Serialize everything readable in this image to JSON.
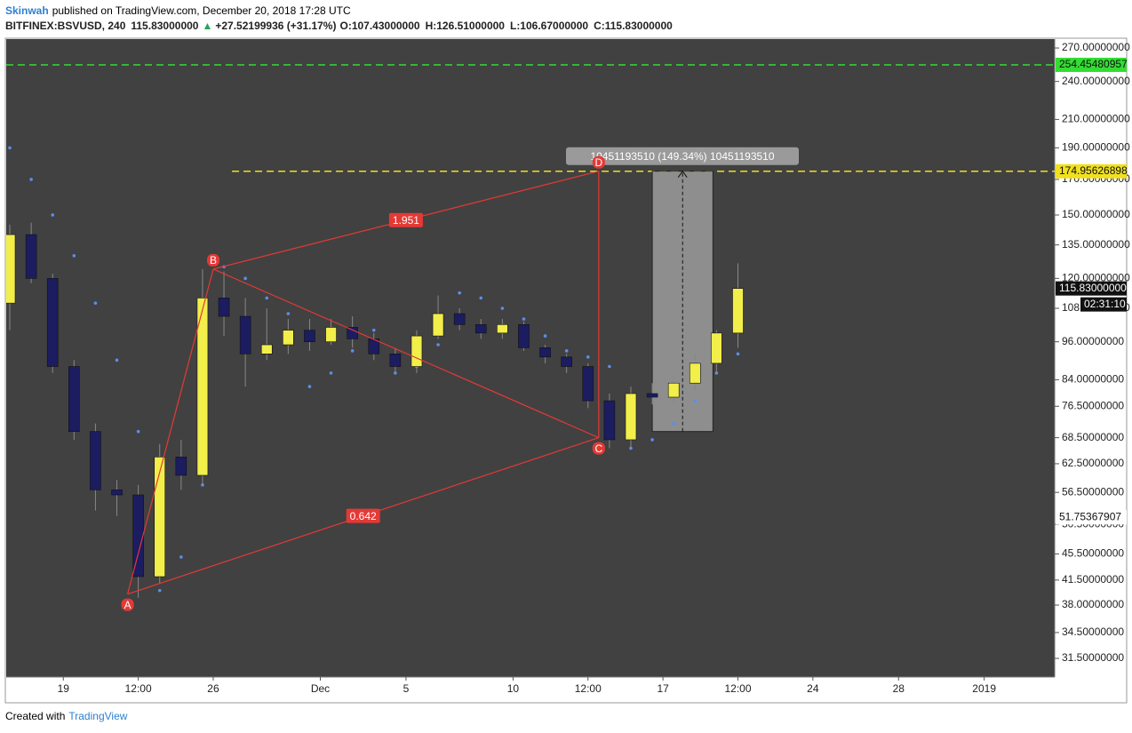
{
  "header": {
    "author": "Skinwah",
    "published": "published on TradingView.com, December 20, 2018 17:28 UTC",
    "symbol": "BITFINEX:BSVUSD, 240",
    "last": "115.83000000",
    "change": "+27.52199936 (+31.17%)",
    "open": "O:107.43000000",
    "high": "H:126.51000000",
    "low": "L:106.67000000",
    "close": "C:115.83000000"
  },
  "footer": {
    "created": "Created with",
    "brand": "TradingView"
  },
  "chart_data": {
    "type": "candlestick",
    "log_scale": true,
    "up_color": "#f2ee4a",
    "down_color": "#1c1c60",
    "sar_color": "#5b8def",
    "xlim": [
      "2018-11-16 08:00",
      "2019-01-04 07:00"
    ],
    "ylim": [
      29.5,
      278.6
    ],
    "xticks": [
      {
        "value": "2018-11-19 00:00",
        "label": "19"
      },
      {
        "value": "2018-11-22 12:00",
        "label": "12:00"
      },
      {
        "value": "2018-11-26 00:00",
        "label": "26"
      },
      {
        "value": "2018-12-01 00:00",
        "label": "Dec"
      },
      {
        "value": "2018-12-05 00:00",
        "label": "5"
      },
      {
        "value": "2018-12-10 00:00",
        "label": "10"
      },
      {
        "value": "2018-12-13 12:00",
        "label": "12:00"
      },
      {
        "value": "2018-12-17 00:00",
        "label": "17"
      },
      {
        "value": "2018-12-20 12:00",
        "label": "12:00"
      },
      {
        "value": "2018-12-24 00:00",
        "label": "24"
      },
      {
        "value": "2018-12-28 00:00",
        "label": "28"
      },
      {
        "value": "2019-01-01 00:00",
        "label": "2019"
      }
    ],
    "yticks": [
      {
        "value": 270,
        "label": "270.00000000"
      },
      {
        "value": 240,
        "label": "240.00000000"
      },
      {
        "value": 210,
        "label": "210.00000000"
      },
      {
        "value": 190,
        "label": "190.00000000"
      },
      {
        "value": 170,
        "label": "170.00000000"
      },
      {
        "value": 150,
        "label": "150.00000000"
      },
      {
        "value": 135,
        "label": "135.00000000"
      },
      {
        "value": 120,
        "label": "120.00000000"
      },
      {
        "value": 108,
        "label": "108.00000000"
      },
      {
        "value": 96,
        "label": "96.00000000"
      },
      {
        "value": 84,
        "label": "84.00000000"
      },
      {
        "value": 76.5,
        "label": "76.50000000"
      },
      {
        "value": 68.5,
        "label": "68.50000000"
      },
      {
        "value": 62.5,
        "label": "62.50000000"
      },
      {
        "value": 56.5,
        "label": "56.50000000"
      },
      {
        "value": 50.5,
        "label": "50.50000000"
      },
      {
        "value": 45.5,
        "label": "45.50000000"
      },
      {
        "value": 41.5,
        "label": "41.50000000"
      },
      {
        "value": 38,
        "label": "38.00000000"
      },
      {
        "value": 34.5,
        "label": "34.50000000"
      },
      {
        "value": 31.5,
        "label": "31.50000000"
      }
    ],
    "x": [
      "2018-11-16 12:00",
      "2018-11-17 12:00",
      "2018-11-18 12:00",
      "2018-11-19 12:00",
      "2018-11-20 12:00",
      "2018-11-21 12:00",
      "2018-11-22 12:00",
      "2018-11-23 12:00",
      "2018-11-24 12:00",
      "2018-11-25 12:00",
      "2018-11-26 12:00",
      "2018-11-27 12:00",
      "2018-11-28 12:00",
      "2018-11-29 12:00",
      "2018-11-30 12:00",
      "2018-12-01 12:00",
      "2018-12-02 12:00",
      "2018-12-03 12:00",
      "2018-12-04 12:00",
      "2018-12-05 12:00",
      "2018-12-06 12:00",
      "2018-12-07 12:00",
      "2018-12-08 12:00",
      "2018-12-09 12:00",
      "2018-12-10 12:00",
      "2018-12-11 12:00",
      "2018-12-12 12:00",
      "2018-12-13 12:00",
      "2018-12-14 12:00",
      "2018-12-15 12:00",
      "2018-12-16 12:00",
      "2018-12-17 12:00",
      "2018-12-18 12:00",
      "2018-12-19 12:00",
      "2018-12-20 12:00"
    ],
    "open": [
      110,
      140,
      120,
      88,
      70,
      57,
      56,
      42,
      64,
      60,
      112,
      105,
      92,
      95,
      100,
      96,
      101,
      97,
      92,
      88,
      98,
      106,
      102,
      99,
      102,
      94,
      91,
      88,
      78,
      68,
      80,
      79,
      83,
      89,
      99
    ],
    "high": [
      145,
      146,
      122,
      90,
      72,
      59,
      58,
      67,
      68,
      124,
      123,
      112,
      108,
      104,
      104,
      104,
      105,
      99,
      94,
      100,
      113,
      108,
      104,
      104,
      103,
      95,
      92,
      89,
      80,
      82,
      83,
      85,
      92,
      100,
      126.51
    ],
    "low": [
      100,
      118,
      86,
      68,
      53,
      52,
      39,
      41,
      57,
      58,
      98,
      82,
      90,
      92,
      93,
      95,
      94,
      90,
      86,
      86,
      97,
      100,
      97,
      97,
      93,
      89,
      86,
      76,
      66,
      66,
      77,
      77,
      81,
      86,
      94
    ],
    "close": [
      140,
      120,
      88,
      70,
      57,
      56,
      42,
      64,
      60,
      112,
      105,
      92,
      95,
      100,
      96,
      101,
      97,
      92,
      88,
      98,
      106,
      102,
      99,
      102,
      94,
      91,
      88,
      78,
      68,
      80,
      79,
      83,
      89,
      99,
      115.83
    ],
    "sar": [
      190,
      170,
      150,
      130,
      110,
      90,
      70,
      40,
      45,
      58,
      125,
      120,
      112,
      106,
      82,
      86,
      93,
      100,
      86,
      88,
      95,
      114,
      112,
      108,
      104,
      98,
      93,
      91,
      88,
      66,
      68,
      72,
      78,
      86,
      92
    ],
    "hlines": [
      {
        "value": 254.45480957,
        "color": "#33dd33",
        "from": "2018-11-16 08:00"
      },
      {
        "value": 174.95626898,
        "color": "#f0e020",
        "from": "2018-11-26 21:00"
      }
    ],
    "last_price": {
      "value": 115.83,
      "label": "115.83000000"
    },
    "countdown": "02:31:10",
    "volume_label": 51.75367907,
    "pattern": {
      "color": "#e53935",
      "points": [
        {
          "label": "A",
          "x": "2018-11-22 00:00",
          "y": 39.5
        },
        {
          "label": "B",
          "x": "2018-11-26 00:00",
          "y": 124
        },
        {
          "label": "C",
          "x": "2018-12-14 00:00",
          "y": 68.5
        },
        {
          "label": "D",
          "x": "2018-12-14 00:00",
          "y": 175
        }
      ],
      "ratios": [
        1.951,
        0.642
      ]
    },
    "projection": {
      "x": [
        "2018-12-16 12:00",
        "2018-12-19 08:00"
      ],
      "y": [
        70,
        175
      ],
      "label": "10451193510 (149.34%) 10451193510"
    }
  }
}
